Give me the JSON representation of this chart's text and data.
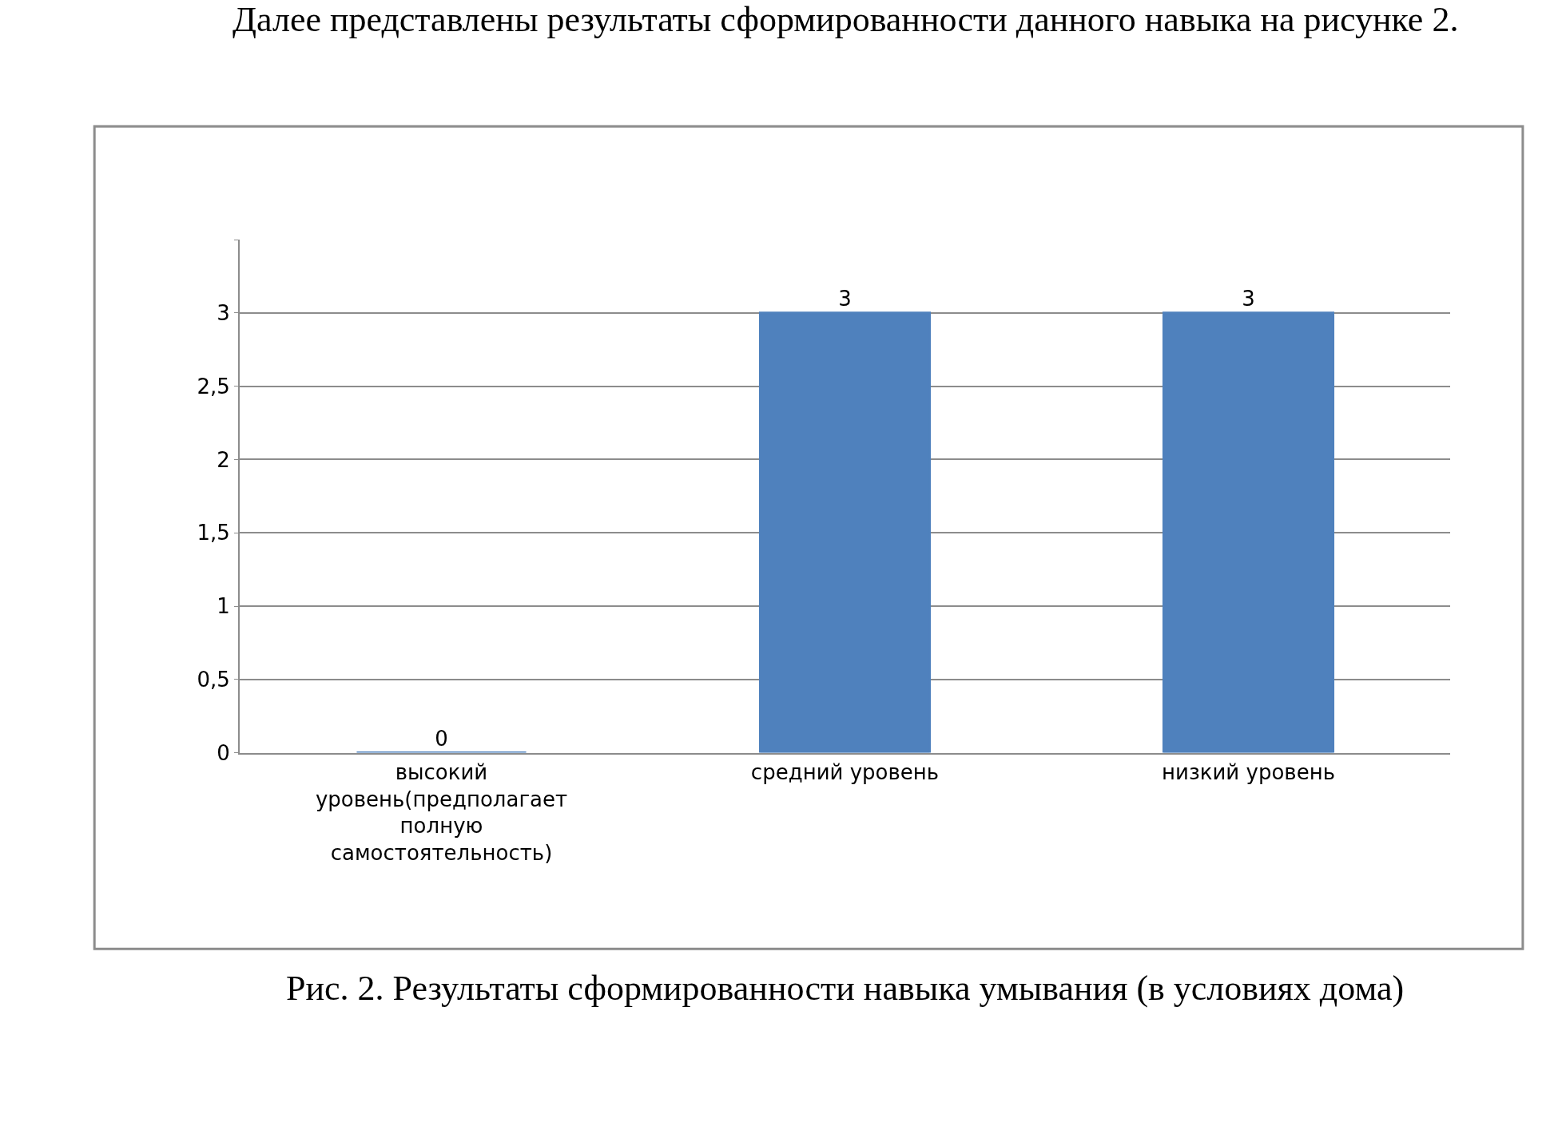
{
  "chart_data": {
    "type": "bar",
    "categories": [
      "высокий уровень(предполагает полную самостоятельность)",
      "средний уровень",
      "низкий уровень"
    ],
    "values": [
      0,
      3,
      3
    ],
    "color": "#4f81bd",
    "ylim": [
      0,
      3.5
    ],
    "yticks": [
      0,
      {
        "value": 0.5,
        "label": "0,5"
      },
      1,
      {
        "value": 1.5,
        "label": "1,5"
      },
      2,
      {
        "value": 2.5,
        "label": "2,5"
      },
      3,
      {
        "value": 3.5,
        "label": null
      }
    ],
    "grid": "y",
    "data_labels": true,
    "legend": false,
    "annotations": [
      "Далее представлены результаты сформированности данного навыка на рисунке 2.",
      "Рис. 2. Результаты сформированности навыка умывания (в условиях дома)"
    ]
  }
}
